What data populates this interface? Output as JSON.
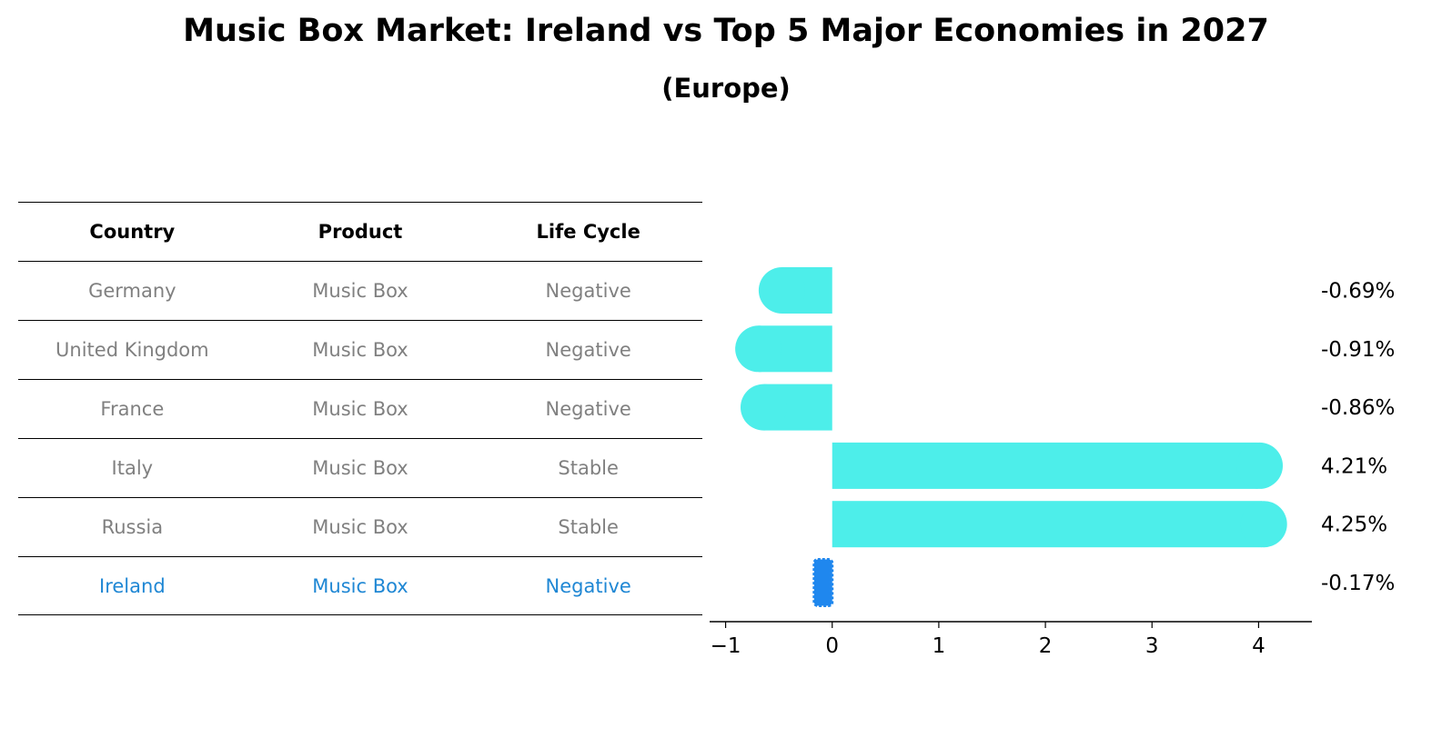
{
  "title": "Music Box Market: Ireland vs Top 5 Major Economies in 2027",
  "subtitle": "(Europe)",
  "table": {
    "headers": [
      "Country",
      "Product",
      "Life Cycle"
    ],
    "rows": [
      [
        "Germany",
        "Music Box",
        "Negative"
      ],
      [
        "United Kingdom",
        "Music Box",
        "Negative"
      ],
      [
        "France",
        "Music Box",
        "Negative"
      ],
      [
        "Italy",
        "Music Box",
        "Stable"
      ],
      [
        "Russia",
        "Music Box",
        "Stable"
      ],
      [
        "Ireland",
        "Music Box",
        "Negative"
      ]
    ],
    "highlight_row": 5,
    "highlight_color": "#1f87d4",
    "text_color": "#808080"
  },
  "chart_data": {
    "type": "bar",
    "orientation": "horizontal",
    "categories": [
      "Germany",
      "United Kingdom",
      "France",
      "Italy",
      "Russia",
      "Ireland"
    ],
    "values": [
      -0.69,
      -0.91,
      -0.86,
      4.21,
      4.25,
      -0.17
    ],
    "value_labels": [
      "-0.69%",
      "-0.91%",
      "-0.86%",
      "4.21%",
      "4.25%",
      "-0.17%"
    ],
    "xlim": [
      -1.15,
      4.5
    ],
    "xticks": [
      -1,
      0,
      1,
      2,
      3,
      4
    ],
    "xtick_labels": [
      "−1",
      "0",
      "1",
      "2",
      "3",
      "4"
    ],
    "colors": {
      "bar": "#4deeea",
      "highlight": "#1f87ee"
    },
    "highlight_index": 5,
    "grid": false
  }
}
